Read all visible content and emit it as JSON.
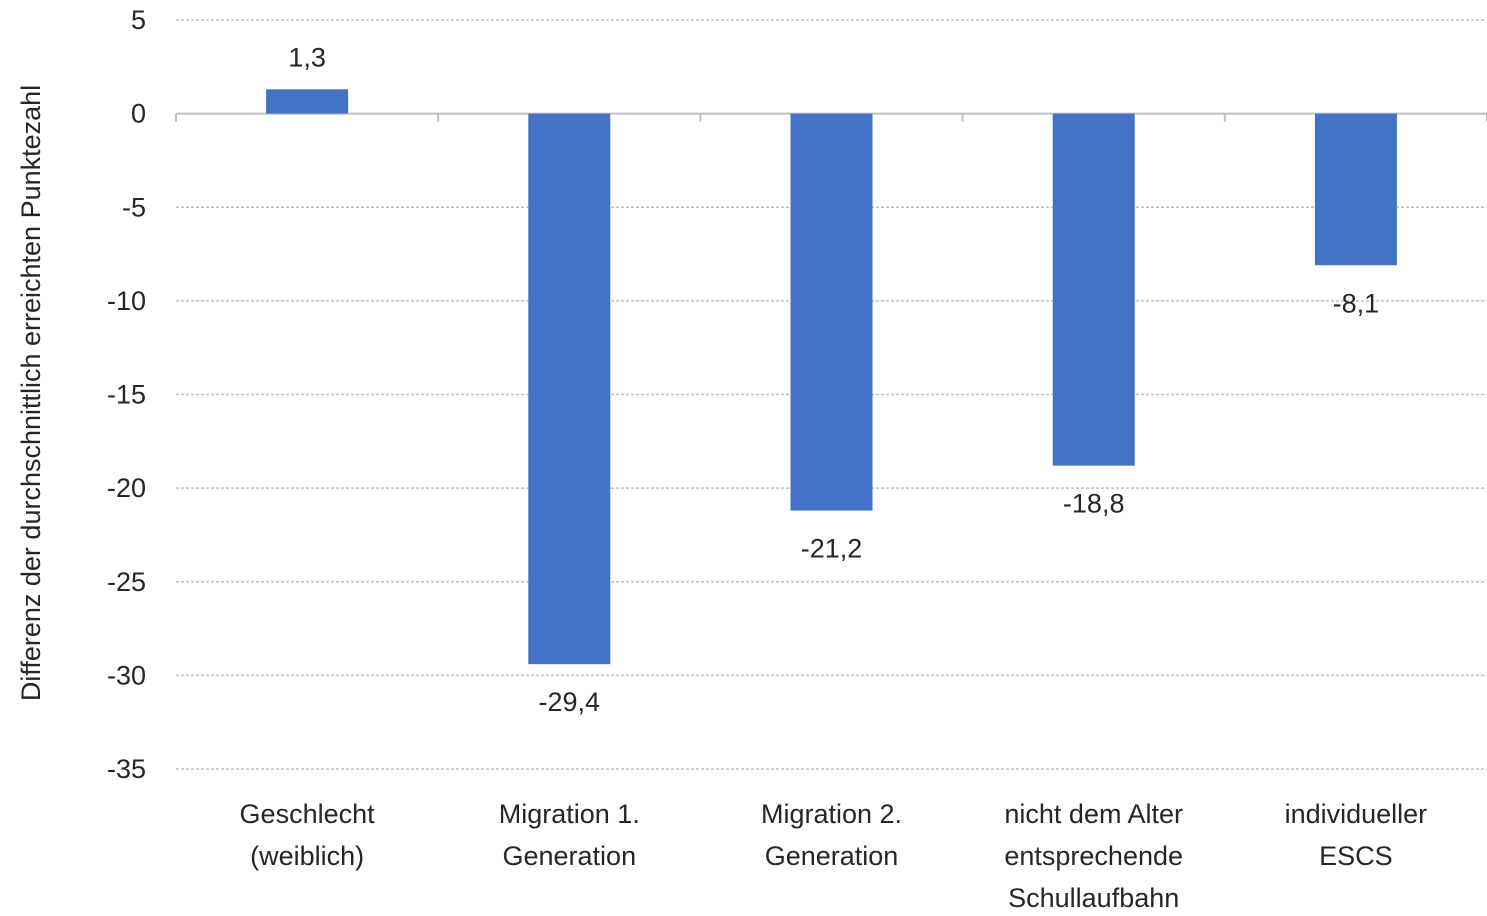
{
  "chart_data": {
    "type": "bar",
    "title": "",
    "xlabel": "",
    "ylabel": "Differenz der durchschnittlich erreichten Punktezahl",
    "ylim": [
      -35,
      5
    ],
    "ytick_step": 5,
    "yticks": [
      "5",
      "0",
      "-5",
      "-10",
      "-15",
      "-20",
      "-25",
      "-30",
      "-35"
    ],
    "grid": true,
    "legend": "none",
    "bar_color": "#4472C4",
    "categories": [
      [
        "Geschlecht",
        "(weiblich)"
      ],
      [
        "Migration 1.",
        "Generation"
      ],
      [
        "Migration 2.",
        "Generation"
      ],
      [
        "nicht dem Alter",
        "entsprechende",
        "Schullaufbahn"
      ],
      [
        "individueller",
        "ESCS"
      ]
    ],
    "values": [
      1.3,
      -29.4,
      -21.2,
      -18.8,
      -8.1
    ],
    "data_labels": [
      "1,3",
      "-29,4",
      "-21,2",
      "-18,8",
      "-8,1"
    ]
  }
}
